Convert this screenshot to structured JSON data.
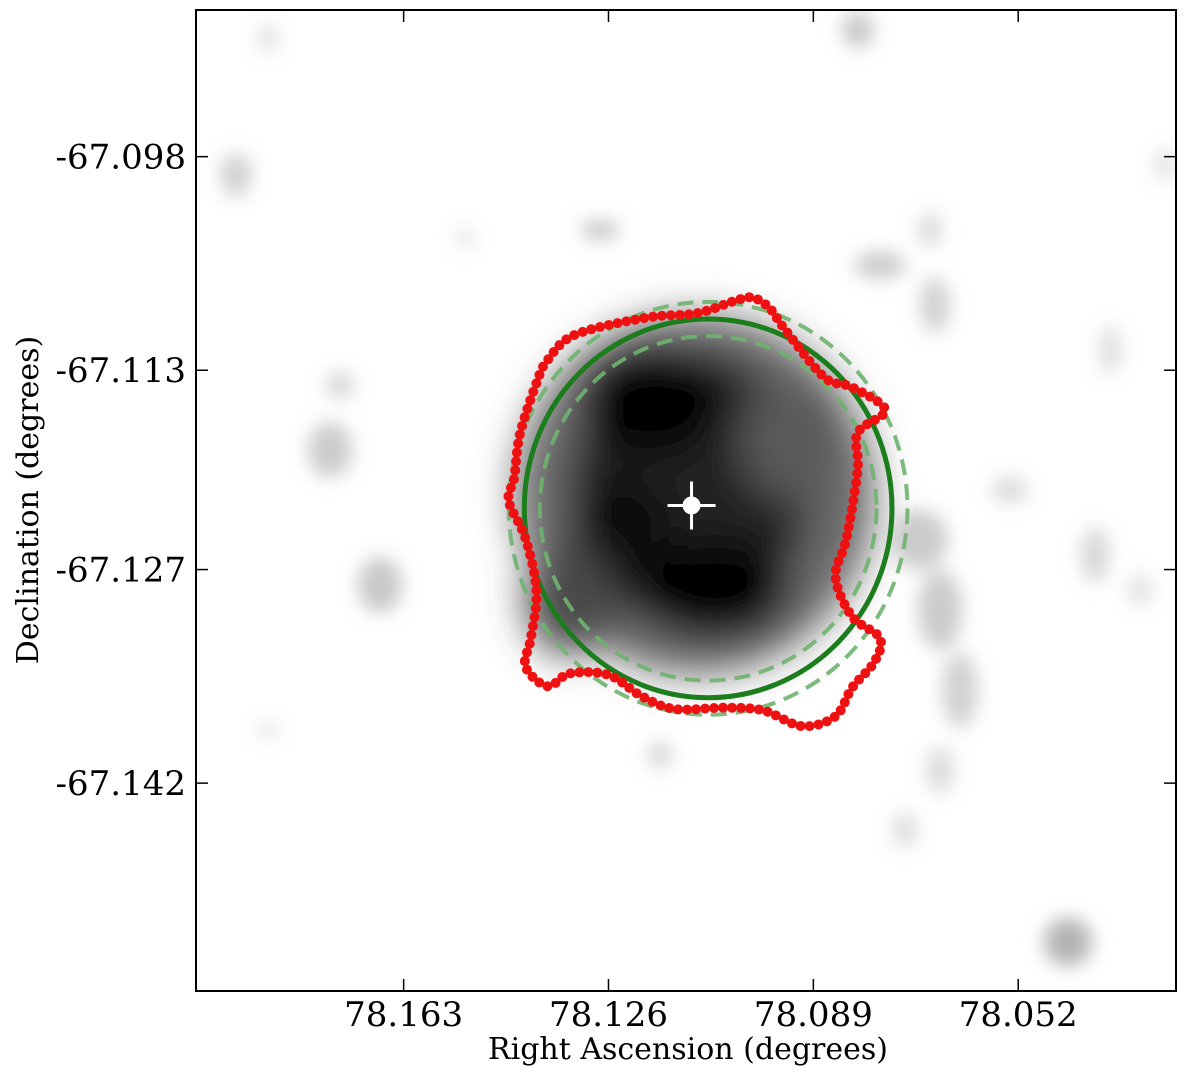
{
  "chart_data": {
    "type": "scatter",
    "title": "",
    "xlabel": "Right Ascension (degrees)",
    "ylabel": "Declination (degrees)",
    "x_ticks": [
      "78.163",
      "78.126",
      "78.089",
      "78.052"
    ],
    "x_tick_values": [
      78.163,
      78.126,
      78.089,
      78.052
    ],
    "y_ticks": [
      "-67.098",
      "-67.113",
      "-67.127",
      "-67.142"
    ],
    "y_tick_values": [
      -67.098,
      -67.113,
      -67.127,
      -67.142
    ],
    "xlim": [
      78.2005,
      78.0235
    ],
    "ylim": [
      -67.1566,
      -67.0877
    ],
    "x_axis_inverted": true,
    "grid": false,
    "legend": "none",
    "background_image": "grayscale-smoothed-xray-intensity",
    "center_marker": {
      "ra": 78.111,
      "dec": -67.1225,
      "marker": "white-circle-with-crosshair"
    },
    "fitted_ellipse": {
      "ra": 78.108,
      "dec": -67.1227,
      "semi_major_ra": 0.0332,
      "semi_minor_dec": 0.0133,
      "color": "#1b7d1b",
      "style": "solid"
    },
    "ellipse_bounds": [
      {
        "ra": 78.108,
        "dec": -67.1227,
        "semi_major_ra": 0.036,
        "semi_minor_dec": 0.0145,
        "color": "#6fb26f",
        "style": "dashed"
      },
      {
        "ra": 78.108,
        "dec": -67.1227,
        "semi_major_ra": 0.0304,
        "semi_minor_dec": 0.0121,
        "color": "#6fb26f",
        "style": "dashed"
      }
    ],
    "edge_contour": {
      "color": "#ee1111",
      "points": [
        [
          78.137,
          -67.1352
        ],
        [
          78.133,
          -67.1343
        ],
        [
          78.126,
          -67.1344
        ],
        [
          78.12,
          -67.1359
        ],
        [
          78.114,
          -67.1368
        ],
        [
          78.105,
          -67.1367
        ],
        [
          78.098,
          -67.1369
        ],
        [
          78.091,
          -67.138
        ],
        [
          78.085,
          -67.1373
        ],
        [
          78.082,
          -67.1353
        ],
        [
          78.078,
          -67.1335
        ],
        [
          78.077,
          -67.1318
        ],
        [
          78.082,
          -67.1303
        ],
        [
          78.085,
          -67.1275
        ],
        [
          78.083,
          -67.1248
        ],
        [
          78.081,
          -67.12
        ],
        [
          78.081,
          -67.1174
        ],
        [
          78.076,
          -67.1158
        ],
        [
          78.082,
          -67.1142
        ],
        [
          78.087,
          -67.1135
        ],
        [
          78.094,
          -67.1102
        ],
        [
          78.097,
          -67.1086
        ],
        [
          78.1,
          -67.1079
        ],
        [
          78.103,
          -67.1081
        ],
        [
          78.11,
          -67.109
        ],
        [
          78.119,
          -67.1093
        ],
        [
          78.132,
          -67.1105
        ],
        [
          78.137,
          -67.1123
        ],
        [
          78.139,
          -67.1139
        ],
        [
          78.142,
          -67.1175
        ],
        [
          78.143,
          -67.1205
        ],
        [
          78.144,
          -67.1222
        ],
        [
          78.141,
          -67.1248
        ],
        [
          78.139,
          -67.1285
        ],
        [
          78.14,
          -67.1318
        ],
        [
          78.141,
          -67.1338
        ]
      ]
    }
  }
}
